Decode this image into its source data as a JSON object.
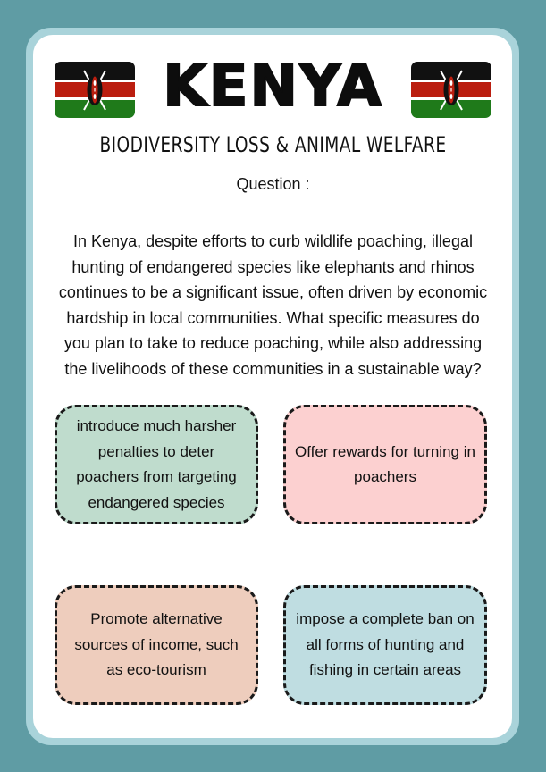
{
  "title": "KENYA",
  "subtitle": "BIODIVERSITY LOSS & ANIMAL WELFARE",
  "question_label": "Question :",
  "question_text": "In Kenya, despite efforts to curb wildlife poaching, illegal hunting of endangered species like elephants and rhinos continues to be a significant issue, often driven by economic hardship in local communities. What specific measures do you plan to take to reduce poaching, while also addressing the livelihoods of these communities in a sustainable way?",
  "options": [
    {
      "text": "introduce much harsher penalties to deter poachers from targeting endangered species",
      "color": "#bfdccd"
    },
    {
      "text": "Offer rewards for turning in poachers",
      "color": "#fcd0d0"
    },
    {
      "text": "Promote alternative sources of income, such as eco-tourism",
      "color": "#eecdbd"
    },
    {
      "text": "impose a complete ban on all forms of hunting and fishing in certain areas",
      "color": "#bfdde1"
    }
  ],
  "flags": {
    "left_icon": "kenya-flag-icon",
    "right_icon": "kenya-flag-icon"
  },
  "colors": {
    "background": "#5f9ca4",
    "frame": "#a9d3da",
    "card": "#ffffff",
    "flag_black": "#111111",
    "flag_red": "#bb1e10",
    "flag_green": "#1f7a1a"
  }
}
